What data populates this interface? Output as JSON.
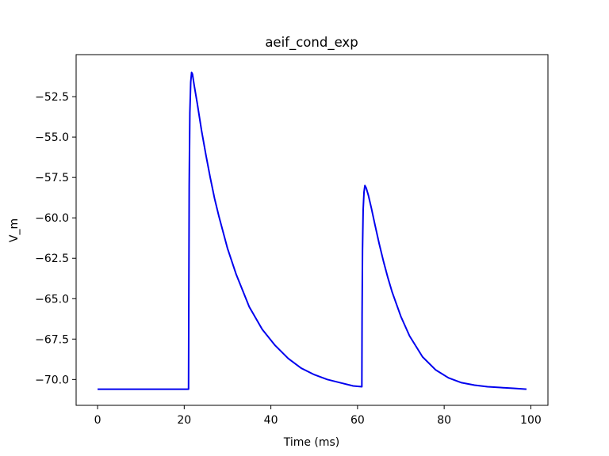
{
  "chart_data": {
    "type": "line",
    "title": "aeif_cond_exp",
    "xlabel": "Time (ms)",
    "ylabel": "V_m",
    "xlim": [
      -4.95,
      103.95
    ],
    "ylim": [
      -71.6,
      -49.9
    ],
    "x_ticks": [
      0,
      20,
      40,
      60,
      80,
      100
    ],
    "y_ticks": [
      -70.0,
      -67.5,
      -65.0,
      -62.5,
      -60.0,
      -57.5,
      -55.0,
      -52.5
    ],
    "x_tick_labels": [
      "0",
      "20",
      "40",
      "60",
      "80",
      "100"
    ],
    "y_tick_labels": [
      "−70.0",
      "−67.5",
      "−65.0",
      "−62.5",
      "−60.0",
      "−57.5",
      "−55.0",
      "−52.5"
    ],
    "grid": false,
    "series": [
      {
        "color": "#0000ee",
        "x": [
          0,
          10,
          20,
          21.0,
          21.05,
          21.15,
          21.3,
          21.5,
          21.7,
          21.9,
          22.3,
          23,
          24,
          25,
          26,
          27,
          28,
          30,
          32,
          35,
          38,
          41,
          44,
          47,
          50,
          53,
          56,
          59,
          61.0,
          61.05,
          61.15,
          61.3,
          61.5,
          61.7,
          62.0,
          62.5,
          63.2,
          64,
          65,
          66,
          67,
          68,
          70,
          72,
          75,
          78,
          81,
          84,
          87,
          90,
          93,
          96,
          99
        ],
        "y": [
          -70.6,
          -70.6,
          -70.6,
          -70.6,
          -66.0,
          -58.0,
          -53.5,
          -51.6,
          -51.0,
          -51.1,
          -51.8,
          -52.9,
          -54.6,
          -56.1,
          -57.5,
          -58.8,
          -59.9,
          -61.9,
          -63.5,
          -65.5,
          -66.9,
          -67.9,
          -68.7,
          -69.3,
          -69.7,
          -70.0,
          -70.2,
          -70.4,
          -70.45,
          -66.0,
          -62.0,
          -59.5,
          -58.4,
          -58.0,
          -58.15,
          -58.6,
          -59.4,
          -60.4,
          -61.6,
          -62.7,
          -63.7,
          -64.6,
          -66.1,
          -67.3,
          -68.6,
          -69.4,
          -69.9,
          -70.2,
          -70.35,
          -70.45,
          -70.5,
          -70.55,
          -70.6
        ]
      }
    ]
  }
}
